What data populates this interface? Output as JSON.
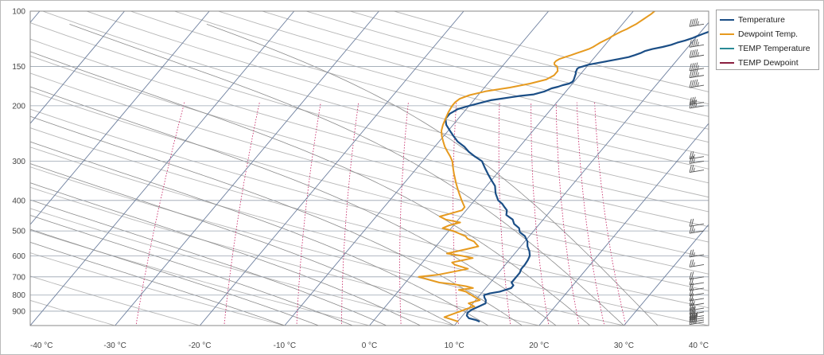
{
  "colors": {
    "temperature": "#1b4e86",
    "dewpoint": "#e69a1f",
    "temp_temperature": "#2a8a96",
    "temp_dewpoint": "#8a1f3f",
    "isotherm": "#6d7f9e",
    "dry_adiabat": "#b7b7b7",
    "moist_adiabat": "#8b8b8b",
    "mixing_ratio": "#c2185b"
  },
  "legend": [
    {
      "label": "Temperature",
      "color": "#1b4e86"
    },
    {
      "label": "Dewpoint Temp.",
      "color": "#e69a1f"
    },
    {
      "label": "TEMP Temperature",
      "color": "#2a8a96"
    },
    {
      "label": "TEMP Dewpoint",
      "color": "#8a1f3f"
    }
  ],
  "chart_data": {
    "type": "line",
    "title": "",
    "xlabel": "",
    "ylabel": "",
    "x_scale": "skew-T (temperature lines skewed)",
    "y_scale": "log pressure, inverted",
    "xlim": [
      -40,
      40
    ],
    "ylim": [
      1000,
      100
    ],
    "x_ticks": [
      "-40 °C",
      "-30 °C",
      "-20 °C",
      "-10 °C",
      "0 °C",
      "10 °C",
      "20 °C",
      "30 °C",
      "40 °C"
    ],
    "x_tick_values": [
      -40,
      -30,
      -20,
      -10,
      0,
      10,
      20,
      30,
      40
    ],
    "y_ticks": [
      "100",
      "150",
      "200",
      "300",
      "400",
      "500",
      "600",
      "700",
      "800",
      "900"
    ],
    "y_tick_values": [
      100,
      150,
      200,
      300,
      400,
      500,
      600,
      700,
      800,
      900
    ],
    "grid": true,
    "legend_position": "top-right",
    "series": [
      {
        "name": "Temperature",
        "pressure": [
          970,
          960,
          948,
          930,
          910,
          890,
          870,
          850,
          830,
          815,
          800,
          790,
          780,
          760,
          745,
          730,
          715,
          700,
          680,
          660,
          640,
          620,
          600,
          580,
          560,
          540,
          520,
          505,
          490,
          475,
          460,
          445,
          430,
          420,
          410,
          400,
          380,
          360,
          345,
          330,
          315,
          300,
          290,
          280,
          270,
          260,
          250,
          240,
          230,
          220,
          212,
          205,
          200,
          196,
          192,
          190,
          188,
          186,
          184,
          182,
          180,
          176,
          174,
          172,
          170,
          168,
          166,
          164,
          162,
          160,
          158,
          156,
          155,
          153,
          152,
          151,
          150,
          148,
          146,
          144,
          142,
          140,
          138,
          136,
          134,
          132,
          130,
          128,
          126,
          124,
          122,
          120,
          118,
          116,
          114,
          112,
          110,
          108,
          106,
          104,
          102,
          100
        ],
        "temp": [
          12.5,
          12,
          11,
          10.5,
          10.3,
          10.5,
          11,
          11.5,
          11.2,
          10.8,
          10.5,
          11,
          12,
          13,
          13,
          12.5,
          12.5,
          12.5,
          12.5,
          12.3,
          12.3,
          12.2,
          12,
          11.5,
          10.8,
          10.3,
          9.5,
          8.5,
          8,
          7,
          6.4,
          5.2,
          4.8,
          4.2,
          3.6,
          2.8,
          1.8,
          1,
          0,
          -1,
          -2,
          -3,
          -4.3,
          -5.5,
          -6.5,
          -7.8,
          -8.8,
          -9.8,
          -10.8,
          -11.5,
          -11.5,
          -11,
          -10,
          -9,
          -8,
          -7,
          -6,
          -5,
          -3.5,
          -3,
          -2.5,
          -2,
          -1.4,
          -1,
          -0.4,
          -0.2,
          -0.2,
          -0.3,
          -0.4,
          -0.5,
          -0.6,
          -0.8,
          -0.8,
          -0.9,
          -0.9,
          -0.8,
          -0.5,
          0,
          1,
          2,
          3,
          4,
          4.5,
          5,
          5.3,
          6,
          7,
          7.8,
          8.3,
          9,
          9.6,
          10,
          10.5,
          11,
          12,
          13,
          14,
          15,
          16,
          17,
          18,
          19
        ]
      },
      {
        "name": "Dewpoint Temp.",
        "pressure": [
          970,
          955,
          940,
          925,
          910,
          895,
          880,
          870,
          860,
          850,
          840,
          830,
          820,
          810,
          800,
          790,
          780,
          770,
          760,
          750,
          740,
          730,
          720,
          710,
          700,
          690,
          680,
          670,
          660,
          650,
          640,
          630,
          620,
          610,
          600,
          590,
          580,
          570,
          560,
          550,
          540,
          530,
          520,
          510,
          500,
          490,
          480,
          470,
          460,
          450,
          440,
          430,
          420,
          410,
          400,
          390,
          380,
          370,
          360,
          350,
          340,
          330,
          320,
          310,
          300,
          290,
          280,
          270,
          260,
          250,
          240,
          230,
          220,
          210,
          200,
          195,
          190,
          185,
          180,
          175,
          170,
          165,
          160,
          155,
          150,
          148,
          146,
          144,
          142,
          140,
          138,
          136,
          134,
          132,
          130,
          128,
          126,
          124,
          122,
          120,
          118,
          116,
          114,
          112,
          110,
          108,
          106,
          104,
          102,
          100
        ],
        "dewp": [
          10,
          9,
          8,
          8.5,
          9,
          9.5,
          10,
          10.5,
          10,
          9.5,
          10,
          10.5,
          10,
          9.5,
          9,
          8.5,
          8,
          7,
          8.5,
          7.5,
          6,
          4,
          3,
          2,
          1,
          3,
          4,
          5,
          6,
          5,
          4,
          3.5,
          4.5,
          5.5,
          4,
          2,
          3,
          4,
          5,
          4.5,
          4,
          3,
          2.5,
          1.5,
          0.5,
          -1,
          -0.5,
          0.5,
          -1.5,
          -2.5,
          -1.5,
          -0.5,
          -0.5,
          -1,
          -1.5,
          -2,
          -2.5,
          -3,
          -3.5,
          -4,
          -4.5,
          -5,
          -5.5,
          -6,
          -6.5,
          -7.2,
          -8,
          -8.8,
          -9.5,
          -10.2,
          -10.8,
          -11.2,
          -11.5,
          -11.8,
          -12,
          -12,
          -11.8,
          -11,
          -9.5,
          -7,
          -5,
          -3.5,
          -3,
          -3,
          -3.5,
          -4,
          -4.2,
          -4.2,
          -4,
          -3.5,
          -3,
          -2.5,
          -2,
          -1.5,
          -1.2,
          -1,
          -0.8,
          -0.5,
          -0.2,
          0,
          0.3,
          0.6,
          1,
          1.3,
          1.6,
          1.8,
          2,
          2.2,
          2.4,
          2.5
        ]
      },
      {
        "name": "TEMP Temperature",
        "pressure": [],
        "temp": []
      },
      {
        "name": "TEMP Dewpoint",
        "pressure": [],
        "dewp": []
      }
    ],
    "wind_barbs": [
      {
        "pressure": 975,
        "speed_kt": 35
      },
      {
        "pressure": 960,
        "speed_kt": 40
      },
      {
        "pressure": 945,
        "speed_kt": 40
      },
      {
        "pressure": 930,
        "speed_kt": 35
      },
      {
        "pressure": 905,
        "speed_kt": 30
      },
      {
        "pressure": 880,
        "speed_kt": 25
      },
      {
        "pressure": 850,
        "speed_kt": 25
      },
      {
        "pressure": 820,
        "speed_kt": 20
      },
      {
        "pressure": 790,
        "speed_kt": 20
      },
      {
        "pressure": 760,
        "speed_kt": 20
      },
      {
        "pressure": 730,
        "speed_kt": 20
      },
      {
        "pressure": 700,
        "speed_kt": 20
      },
      {
        "pressure": 640,
        "speed_kt": 25
      },
      {
        "pressure": 595,
        "speed_kt": 25
      },
      {
        "pressure": 500,
        "speed_kt": 25
      },
      {
        "pressure": 475,
        "speed_kt": 20
      },
      {
        "pressure": 320,
        "speed_kt": 25
      },
      {
        "pressure": 300,
        "speed_kt": 25
      },
      {
        "pressure": 290,
        "speed_kt": 25
      },
      {
        "pressure": 200,
        "speed_kt": 35
      },
      {
        "pressure": 195,
        "speed_kt": 35
      },
      {
        "pressure": 172,
        "speed_kt": 45
      },
      {
        "pressure": 160,
        "speed_kt": 45
      },
      {
        "pressure": 152,
        "speed_kt": 45
      },
      {
        "pressure": 138,
        "speed_kt": 45
      },
      {
        "pressure": 128,
        "speed_kt": 45
      },
      {
        "pressure": 110,
        "speed_kt": 45
      }
    ]
  }
}
